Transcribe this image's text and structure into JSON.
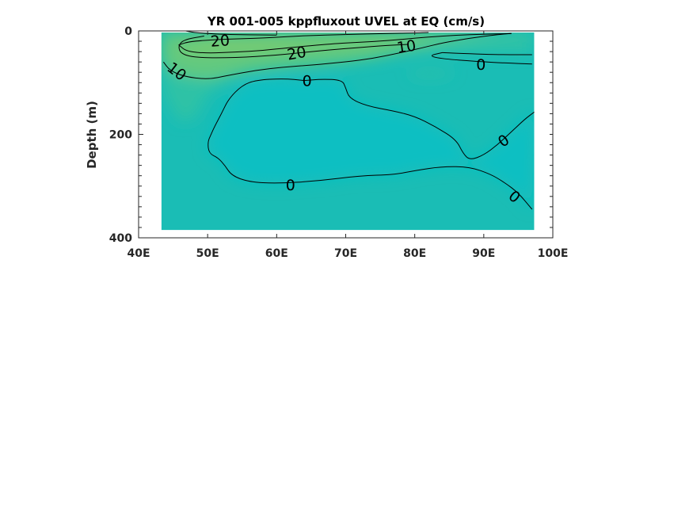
{
  "chart_data": {
    "type": "contour",
    "title": "YR 001-005 kppfluxout UVEL at EQ (cm/s)",
    "xlabel": "",
    "ylabel": "Depth (m)",
    "xlim": [
      40,
      100
    ],
    "ylim": [
      0,
      400
    ],
    "y_reversed": true,
    "data_extent": {
      "lon": [
        43.3,
        97.3
      ],
      "depth": [
        3,
        385
      ]
    },
    "x_ticks": [
      {
        "value": 40,
        "label": "40E"
      },
      {
        "value": 50,
        "label": "50E"
      },
      {
        "value": 60,
        "label": "60E"
      },
      {
        "value": 70,
        "label": "70E"
      },
      {
        "value": 80,
        "label": "80E"
      },
      {
        "value": 90,
        "label": "90E"
      },
      {
        "value": 100,
        "label": "100E"
      }
    ],
    "y_ticks": [
      {
        "value": 0,
        "label": "0"
      },
      {
        "value": 200,
        "label": "200"
      },
      {
        "value": 400,
        "label": "400"
      }
    ],
    "colors": {
      "background_field": "#1ABDB5",
      "zero_region": "#0BBFC2",
      "weak_positive": "#2EC2A6",
      "jet_core": "#62C97F",
      "jet_max": "#7DCB6C"
    },
    "contours": [
      {
        "level": 20,
        "points": [
          [
            45.8,
            27
          ],
          [
            47.5,
            20
          ],
          [
            52.5,
            16
          ],
          [
            58,
            14
          ],
          [
            64,
            9
          ],
          [
            70,
            7
          ],
          [
            76,
            5
          ],
          [
            80,
            4
          ],
          [
            82,
            3
          ]
        ]
      },
      {
        "level": 20,
        "points": [
          [
            45.8,
            27
          ],
          [
            47,
            40
          ],
          [
            50,
            43
          ],
          [
            54,
            41
          ],
          [
            58,
            38
          ],
          [
            62,
            32
          ],
          [
            68,
            25
          ],
          [
            72,
            22
          ],
          [
            76,
            19
          ],
          [
            80,
            14
          ],
          [
            84,
            10
          ],
          [
            88,
            7
          ],
          [
            92,
            6
          ],
          [
            94,
            5
          ]
        ]
      },
      {
        "level": 10,
        "points": [
          [
            43.6,
            60
          ],
          [
            44.5,
            76
          ],
          [
            46.5,
            88
          ],
          [
            50,
            94
          ],
          [
            53,
            86
          ],
          [
            57,
            76
          ],
          [
            61,
            70
          ],
          [
            65,
            66
          ],
          [
            70,
            60
          ],
          [
            74,
            53
          ],
          [
            78,
            42
          ],
          [
            81,
            33
          ],
          [
            84,
            23
          ],
          [
            88,
            14
          ],
          [
            92,
            7
          ],
          [
            94,
            5
          ]
        ]
      },
      {
        "level": 10,
        "points": [
          [
            46.8,
            0
          ],
          [
            48,
            3
          ],
          [
            52,
            7
          ],
          [
            60,
            8
          ]
        ]
      },
      {
        "level": 10,
        "points": [
          [
            49.5,
            10
          ],
          [
            46.5,
            17
          ],
          [
            45.7,
            30
          ],
          [
            46.2,
            45
          ],
          [
            48.5,
            52
          ],
          [
            54,
            52
          ],
          [
            60,
            47
          ],
          [
            65,
            40
          ],
          [
            70,
            34
          ],
          [
            75,
            29
          ],
          [
            79,
            26
          ]
        ]
      },
      {
        "level": 0,
        "points": [
          [
            84,
            42
          ],
          [
            86,
            43
          ],
          [
            90,
            45
          ],
          [
            93,
            46
          ],
          [
            97,
            46
          ]
        ]
      },
      {
        "level": 0,
        "points": [
          [
            84,
            42
          ],
          [
            82,
            48
          ],
          [
            84,
            54
          ],
          [
            89,
            59
          ],
          [
            93,
            62
          ],
          [
            97,
            64
          ]
        ]
      },
      {
        "level": 0,
        "points": [
          [
            64,
            96
          ],
          [
            61,
            92
          ],
          [
            57,
            95
          ],
          [
            55,
            105
          ],
          [
            53,
            132
          ],
          [
            52,
            160
          ],
          [
            51,
            185
          ],
          [
            50.5,
            200
          ],
          [
            50,
            215
          ],
          [
            50.2,
            237
          ],
          [
            51.5,
            245
          ],
          [
            52.5,
            260
          ],
          [
            53.5,
            280
          ],
          [
            56,
            292
          ],
          [
            60,
            295
          ],
          [
            66,
            290
          ],
          [
            72,
            280
          ],
          [
            77,
            278
          ],
          [
            80,
            270
          ],
          [
            84,
            262
          ],
          [
            88,
            263
          ],
          [
            91,
            277
          ],
          [
            93,
            293
          ],
          [
            95,
            313
          ],
          [
            97,
            345
          ]
        ]
      },
      {
        "level": 0,
        "points": [
          [
            64,
            96
          ],
          [
            66.5,
            93
          ],
          [
            69.5,
            95
          ],
          [
            70,
            110
          ],
          [
            70.5,
            130
          ],
          [
            73,
            145
          ],
          [
            77,
            155
          ],
          [
            80,
            165
          ],
          [
            83,
            185
          ],
          [
            86,
            210
          ],
          [
            87,
            237
          ],
          [
            88,
            250
          ],
          [
            90,
            240
          ],
          [
            92,
            220
          ],
          [
            94,
            195
          ],
          [
            96,
            170
          ],
          [
            97.3,
            157
          ]
        ]
      }
    ],
    "contour_labels": [
      {
        "text": "20",
        "lon": 51.8,
        "depth": 20,
        "angle": -4
      },
      {
        "text": "20",
        "lon": 62.9,
        "depth": 44,
        "angle": -10
      },
      {
        "text": "10",
        "lon": 78.8,
        "depth": 31,
        "angle": -8
      },
      {
        "text": "10",
        "lon": 45.5,
        "depth": 79,
        "angle": 38
      },
      {
        "text": "0",
        "lon": 89.6,
        "depth": 66,
        "angle": 0
      },
      {
        "text": "0",
        "lon": 64.4,
        "depth": 97,
        "angle": 0
      },
      {
        "text": "0",
        "lon": 92.9,
        "depth": 213,
        "angle": -35
      },
      {
        "text": "0",
        "lon": 62.0,
        "depth": 299,
        "angle": 0
      },
      {
        "text": "0",
        "lon": 94.4,
        "depth": 321,
        "angle": 40
      }
    ]
  }
}
